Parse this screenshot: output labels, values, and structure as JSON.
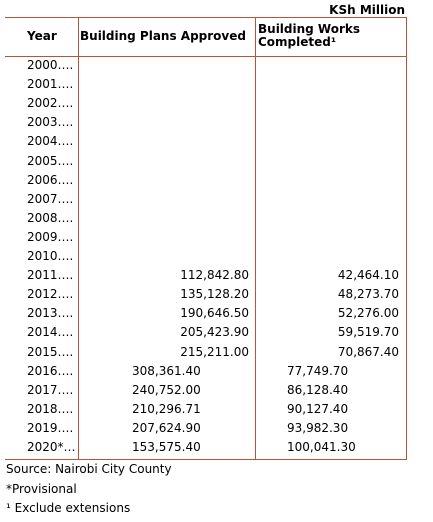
{
  "unit_label": "KSh Million",
  "headers": {
    "year": "Year",
    "plans": "Building Plans Approved",
    "works": "Building Works Completed¹"
  },
  "rows": [
    {
      "year": "2000….",
      "plans": "",
      "works": "",
      "style": "right"
    },
    {
      "year": "2001….",
      "plans": "",
      "works": "",
      "style": "right"
    },
    {
      "year": "2002….",
      "plans": "",
      "works": "",
      "style": "right"
    },
    {
      "year": "2003….",
      "plans": "",
      "works": "",
      "style": "right"
    },
    {
      "year": "2004….",
      "plans": "",
      "works": "",
      "style": "right"
    },
    {
      "year": "2005….",
      "plans": "",
      "works": "",
      "style": "right"
    },
    {
      "year": "2006….",
      "plans": "",
      "works": "",
      "style": "right"
    },
    {
      "year": "2007….",
      "plans": "",
      "works": "",
      "style": "right"
    },
    {
      "year": "2008….",
      "plans": "",
      "works": "",
      "style": "right"
    },
    {
      "year": "2009….",
      "plans": "",
      "works": "",
      "style": "right"
    },
    {
      "year": "2010….",
      "plans": "",
      "works": "",
      "style": "right"
    },
    {
      "year": "2011….",
      "plans": "112,842.80",
      "works": "42,464.10",
      "style": "right"
    },
    {
      "year": "2012….",
      "plans": "135,128.20",
      "works": "48,273.70",
      "style": "right"
    },
    {
      "year": "2013….",
      "plans": "190,646.50",
      "works": "52,276.00",
      "style": "right"
    },
    {
      "year": "2014….",
      "plans": "205,423.90",
      "works": "59,519.70",
      "style": "right"
    },
    {
      "year": "2015….",
      "plans": "215,211.00",
      "works": "70,867.40",
      "style": "right"
    },
    {
      "year": "2016….",
      "plans": "308,361.40",
      "works": "77,749.70",
      "style": "left"
    },
    {
      "year": "2017….",
      "plans": "240,752.00",
      "works": "86,128.40",
      "style": "left"
    },
    {
      "year": "2018….",
      "plans": "210,296.71",
      "works": "90,127.40",
      "style": "left"
    },
    {
      "year": "2019….",
      "plans": "207,624.90",
      "works": "93,982.30",
      "style": "left"
    },
    {
      "year": "2020*…",
      "plans": "153,575.40",
      "works": "100,041.30",
      "style": "left"
    }
  ],
  "notes": {
    "source": "Source:  Nairobi City County",
    "provisional": "*Provisional",
    "exclude": "¹ Exclude extensions"
  }
}
